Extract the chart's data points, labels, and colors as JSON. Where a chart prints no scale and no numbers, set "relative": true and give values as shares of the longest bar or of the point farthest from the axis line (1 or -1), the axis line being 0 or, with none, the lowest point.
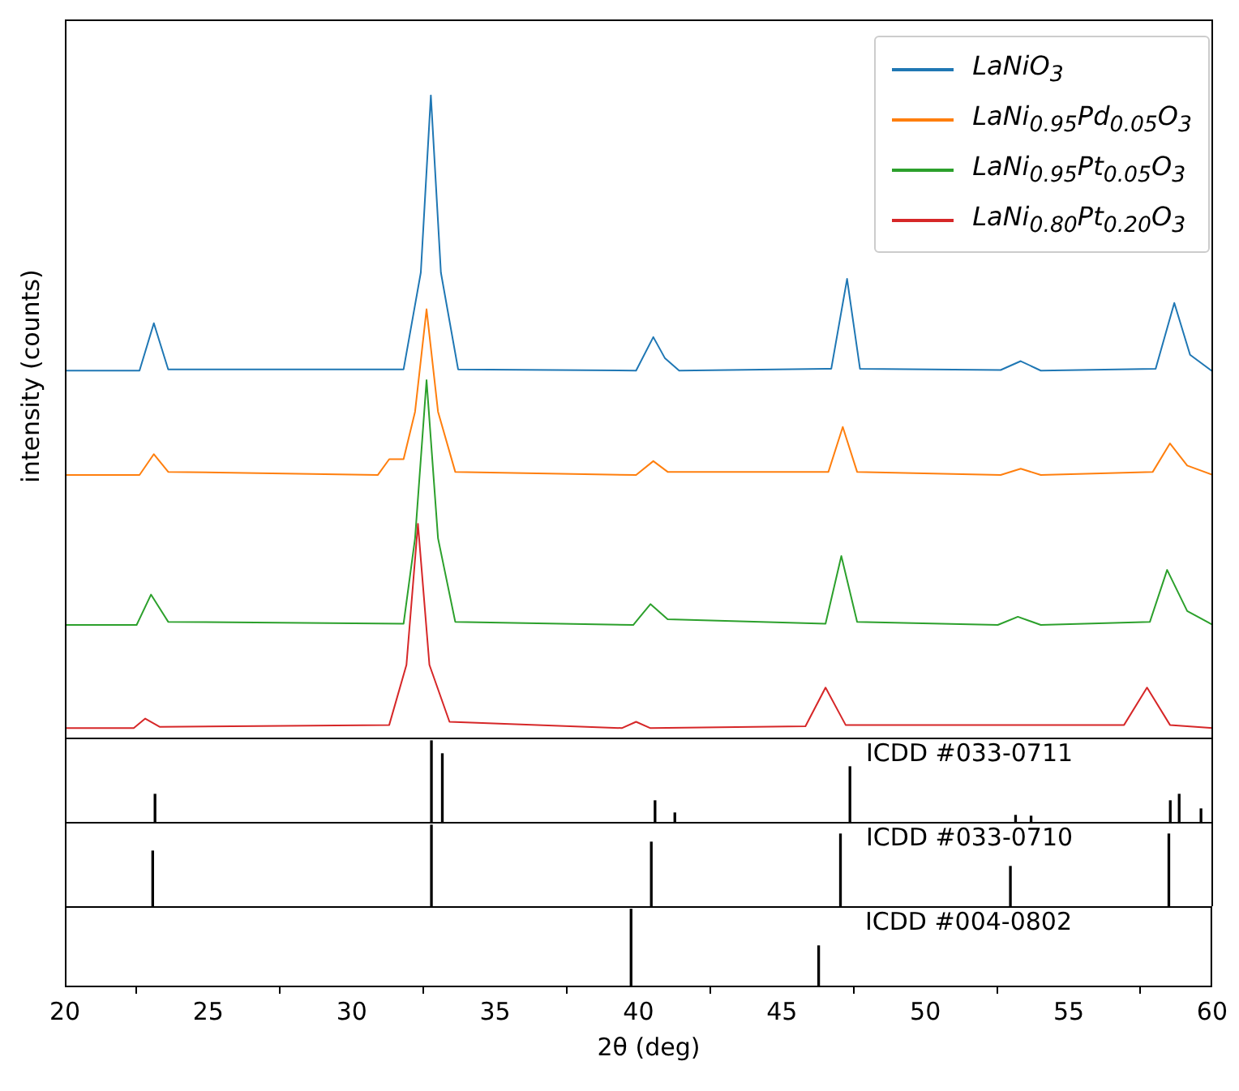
{
  "chart_data": [
    {
      "type": "line",
      "ylabel": "intensity (counts)",
      "relative": true,
      "xlim": [
        20,
        60
      ],
      "tick_labels": false,
      "legend": "top right",
      "series": [
        {
          "name": "LaNiO$_{3}$",
          "color": "#1f77b4",
          "x": [
            20,
            22.6,
            23.1,
            23.6,
            31.8,
            32.4,
            32.75,
            33.1,
            33.7,
            39.9,
            40.5,
            40.9,
            41.4,
            46.7,
            47.25,
            47.7,
            52.6,
            53.3,
            54.0,
            58.0,
            58.65,
            59.2,
            60
          ],
          "values": [
            0.565,
            0.565,
            0.64,
            0.567,
            0.567,
            0.72,
            1.0,
            0.72,
            0.567,
            0.565,
            0.618,
            0.585,
            0.565,
            0.568,
            0.71,
            0.568,
            0.566,
            0.58,
            0.565,
            0.568,
            0.672,
            0.59,
            0.563
          ]
        },
        {
          "name": "LaNi$_{0.95}$Pd$_{0.05}$O$_{3}$",
          "color": "#ff7f0e",
          "x": [
            20,
            22.6,
            23.1,
            23.6,
            30.9,
            31.3,
            31.8,
            32.2,
            32.6,
            33.0,
            33.6,
            39.9,
            40.5,
            41.0,
            46.6,
            47.1,
            47.6,
            52.6,
            53.3,
            54.0,
            57.9,
            58.5,
            59.1,
            60
          ],
          "values": [
            0.4,
            0.4,
            0.433,
            0.405,
            0.4,
            0.425,
            0.425,
            0.5,
            0.662,
            0.5,
            0.405,
            0.4,
            0.422,
            0.405,
            0.405,
            0.476,
            0.405,
            0.4,
            0.41,
            0.4,
            0.405,
            0.45,
            0.415,
            0.4
          ]
        },
        {
          "name": "LaNi$_{0.95}$Pt$_{0.05}$O$_{3}$",
          "color": "#2ca02c",
          "x": [
            20,
            22.5,
            23.0,
            23.6,
            31.8,
            32.2,
            32.6,
            33.0,
            33.6,
            39.8,
            40.4,
            41.0,
            46.5,
            47.05,
            47.6,
            52.5,
            53.2,
            54,
            57.8,
            58.4,
            59.1,
            60
          ],
          "values": [
            0.163,
            0.163,
            0.211,
            0.168,
            0.165,
            0.3,
            0.55,
            0.3,
            0.168,
            0.163,
            0.196,
            0.172,
            0.165,
            0.272,
            0.168,
            0.163,
            0.176,
            0.163,
            0.168,
            0.25,
            0.185,
            0.163
          ]
        },
        {
          "name": "LaNi$_{0.80}$Pt$_{0.20}$O$_{3}$",
          "color": "#d62728",
          "x": [
            20,
            22.4,
            22.8,
            23.3,
            31.3,
            31.9,
            32.3,
            32.7,
            33.4,
            39.4,
            39.9,
            40.4,
            45.8,
            46.5,
            47.2,
            56.9,
            57.7,
            58.5,
            60
          ],
          "values": [
            0,
            0,
            0.015,
            0.002,
            0.005,
            0.1,
            0.323,
            0.1,
            0.01,
            0,
            0.01,
            0,
            0.003,
            0.064,
            0.005,
            0.005,
            0.064,
            0.005,
            0
          ]
        }
      ]
    },
    {
      "type": "bar",
      "relative": true,
      "xlim": [
        20,
        60
      ],
      "tick_labels": false,
      "color": "#000000",
      "annotations": [
        "ICDD #033-0711"
      ],
      "x": [
        23.14,
        32.77,
        33.15,
        40.56,
        41.25,
        47.35,
        53.12,
        53.66,
        58.51,
        58.82,
        59.58
      ],
      "values": [
        0.34,
        1,
        0.84,
        0.26,
        0.11,
        0.68,
        0.08,
        0.07,
        0.26,
        0.34,
        0.16
      ]
    },
    {
      "type": "bar",
      "relative": true,
      "xlim": [
        20,
        60
      ],
      "tick_labels": false,
      "color": "#000000",
      "annotations": [
        "ICDD #033-0710"
      ],
      "x": [
        23.06,
        32.77,
        40.43,
        47.02,
        52.94,
        58.46
      ],
      "values": [
        0.68,
        1,
        0.79,
        0.89,
        0.49,
        0.89
      ]
    },
    {
      "type": "bar",
      "relative": true,
      "xlim": [
        20,
        60
      ],
      "xticks": [
        20,
        25,
        30,
        35,
        40,
        45,
        50,
        55,
        60
      ],
      "tick_labels": "x",
      "xlabel": "2θ (deg)",
      "color": "#000000",
      "annotations": [
        "ICDD #004-0802"
      ],
      "x": [
        39.74,
        46.28
      ],
      "values": [
        1,
        0.52
      ]
    }
  ]
}
